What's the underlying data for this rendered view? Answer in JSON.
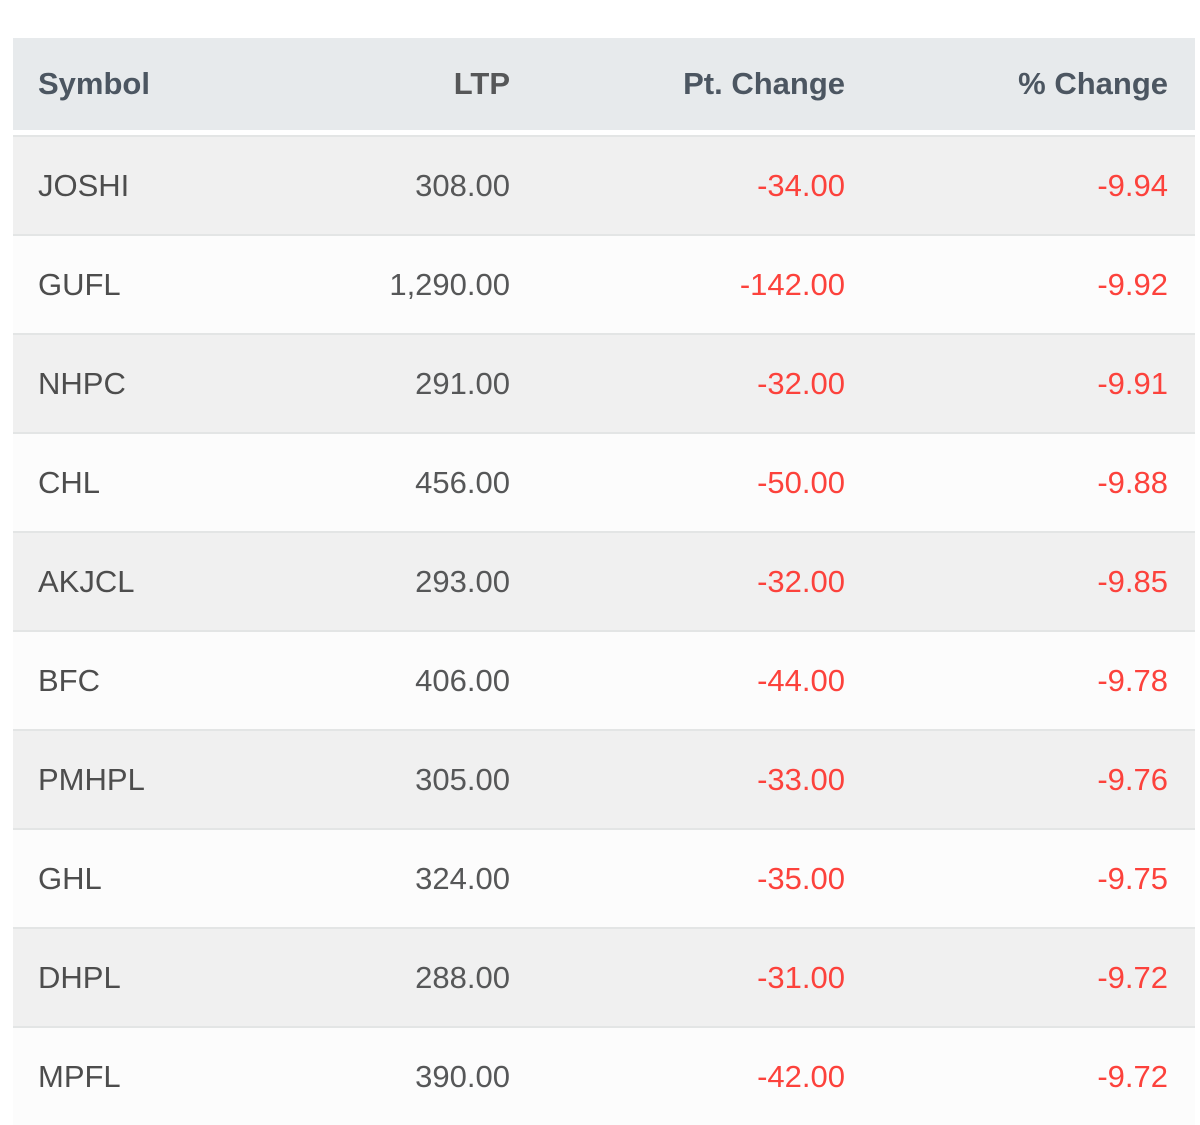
{
  "table": {
    "headers": {
      "symbol": "Symbol",
      "ltp": "LTP",
      "pt_change": "Pt. Change",
      "pct_change": "% Change"
    },
    "rows": [
      {
        "symbol": "JOSHI",
        "ltp": "308.00",
        "pt_change": "-34.00",
        "pct_change": "-9.94"
      },
      {
        "symbol": "GUFL",
        "ltp": "1,290.00",
        "pt_change": "-142.00",
        "pct_change": "-9.92"
      },
      {
        "symbol": "NHPC",
        "ltp": "291.00",
        "pt_change": "-32.00",
        "pct_change": "-9.91"
      },
      {
        "symbol": "CHL",
        "ltp": "456.00",
        "pt_change": "-50.00",
        "pct_change": "-9.88"
      },
      {
        "symbol": "AKJCL",
        "ltp": "293.00",
        "pt_change": "-32.00",
        "pct_change": "-9.85"
      },
      {
        "symbol": "BFC",
        "ltp": "406.00",
        "pt_change": "-44.00",
        "pct_change": "-9.78"
      },
      {
        "symbol": "PMHPL",
        "ltp": "305.00",
        "pt_change": "-33.00",
        "pct_change": "-9.76"
      },
      {
        "symbol": "GHL",
        "ltp": "324.00",
        "pt_change": "-35.00",
        "pct_change": "-9.75"
      },
      {
        "symbol": "DHPL",
        "ltp": "288.00",
        "pt_change": "-31.00",
        "pct_change": "-9.72"
      },
      {
        "symbol": "MPFL",
        "ltp": "390.00",
        "pt_change": "-42.00",
        "pct_change": "-9.72"
      }
    ]
  },
  "colors": {
    "header_bg": "#e7eaec",
    "header_text": "#4c5661",
    "row_alt_bg": "#f0f0f0",
    "row_bg": "#fcfcfc",
    "row_border": "#e3e5e5",
    "body_text": "#4d4d4d",
    "negative_text": "#fc423c"
  }
}
